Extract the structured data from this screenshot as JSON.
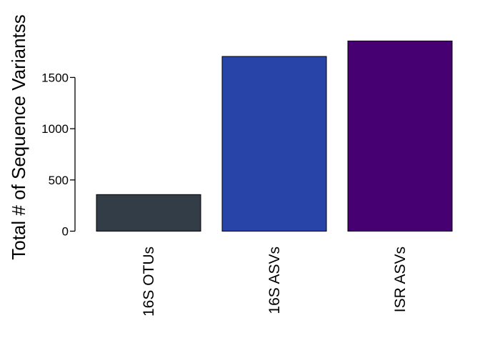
{
  "chart_data": {
    "type": "bar",
    "categories": [
      "16S OTUs",
      "16S ASVs",
      "ISR ASVs"
    ],
    "values": [
      357,
      1705,
      1856
    ],
    "colors": [
      "#333d47",
      "#2844a8",
      "#460072"
    ],
    "title": "",
    "xlabel": "",
    "ylabel": "Total # of Sequence Variantss",
    "ylim": [
      0,
      1900
    ],
    "yticks": [
      0,
      500,
      1000,
      1500
    ],
    "grid": false,
    "legend": "none"
  }
}
